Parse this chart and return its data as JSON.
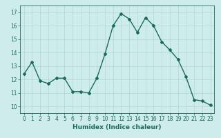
{
  "x": [
    0,
    1,
    2,
    3,
    4,
    5,
    6,
    7,
    8,
    9,
    10,
    11,
    12,
    13,
    14,
    15,
    16,
    17,
    18,
    19,
    20,
    21,
    22,
    23
  ],
  "y": [
    12.4,
    13.3,
    11.9,
    11.7,
    12.1,
    12.1,
    11.1,
    11.1,
    11.0,
    12.1,
    13.9,
    16.0,
    16.9,
    16.5,
    15.5,
    16.6,
    16.0,
    14.8,
    14.2,
    13.5,
    12.2,
    10.5,
    10.4,
    10.1
  ],
  "line_color": "#1a6b5a",
  "marker": "D",
  "marker_size": 2.0,
  "bg_color": "#ceecea",
  "grid_color": "#b8dbd8",
  "xlabel": "Humidex (Indice chaleur)",
  "ylim": [
    9.5,
    17.5
  ],
  "yticks": [
    10,
    11,
    12,
    13,
    14,
    15,
    16,
    17
  ],
  "xlim": [
    -0.5,
    23.5
  ],
  "xticks": [
    0,
    1,
    2,
    3,
    4,
    5,
    6,
    7,
    8,
    9,
    10,
    11,
    12,
    13,
    14,
    15,
    16,
    17,
    18,
    19,
    20,
    21,
    22,
    23
  ],
  "xlabel_fontsize": 6.5,
  "tick_fontsize": 5.5,
  "line_width": 1.0
}
